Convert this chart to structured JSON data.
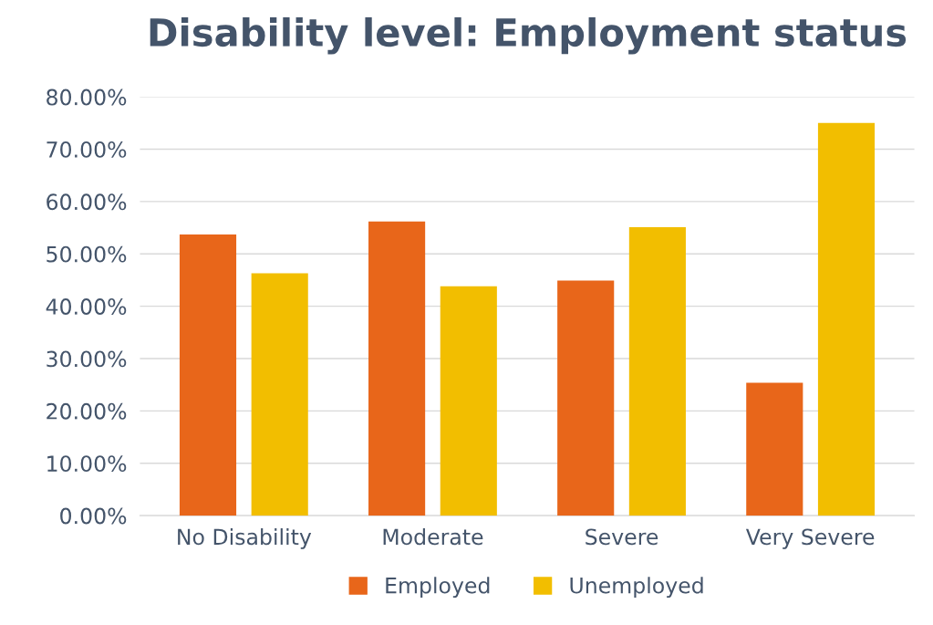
{
  "chart_data": {
    "type": "bar",
    "title": "Disability level: Employment status",
    "categories": [
      "No Disability",
      "Moderate",
      "Severe",
      "Very Severe"
    ],
    "series": [
      {
        "name": "Employed",
        "color": "#e8661a",
        "values": [
          53.7,
          56.2,
          44.9,
          25.4
        ]
      },
      {
        "name": "Unemployed",
        "color": "#f2be00",
        "values": [
          46.3,
          43.8,
          55.1,
          75.0
        ]
      }
    ],
    "ylim": [
      0,
      80
    ],
    "yticks": [
      {
        "value": 0,
        "label": "0.00%"
      },
      {
        "value": 10,
        "label": "10.00%"
      },
      {
        "value": 20,
        "label": "20.00%"
      },
      {
        "value": 30,
        "label": "30.00%"
      },
      {
        "value": 40,
        "label": "40.00%"
      },
      {
        "value": 50,
        "label": "50.00%"
      },
      {
        "value": 60,
        "label": "60.00%"
      },
      {
        "value": 70,
        "label": "70.00%"
      },
      {
        "value": 80,
        "label": "80.00%"
      }
    ],
    "grid": "y",
    "legend": "bottom"
  }
}
